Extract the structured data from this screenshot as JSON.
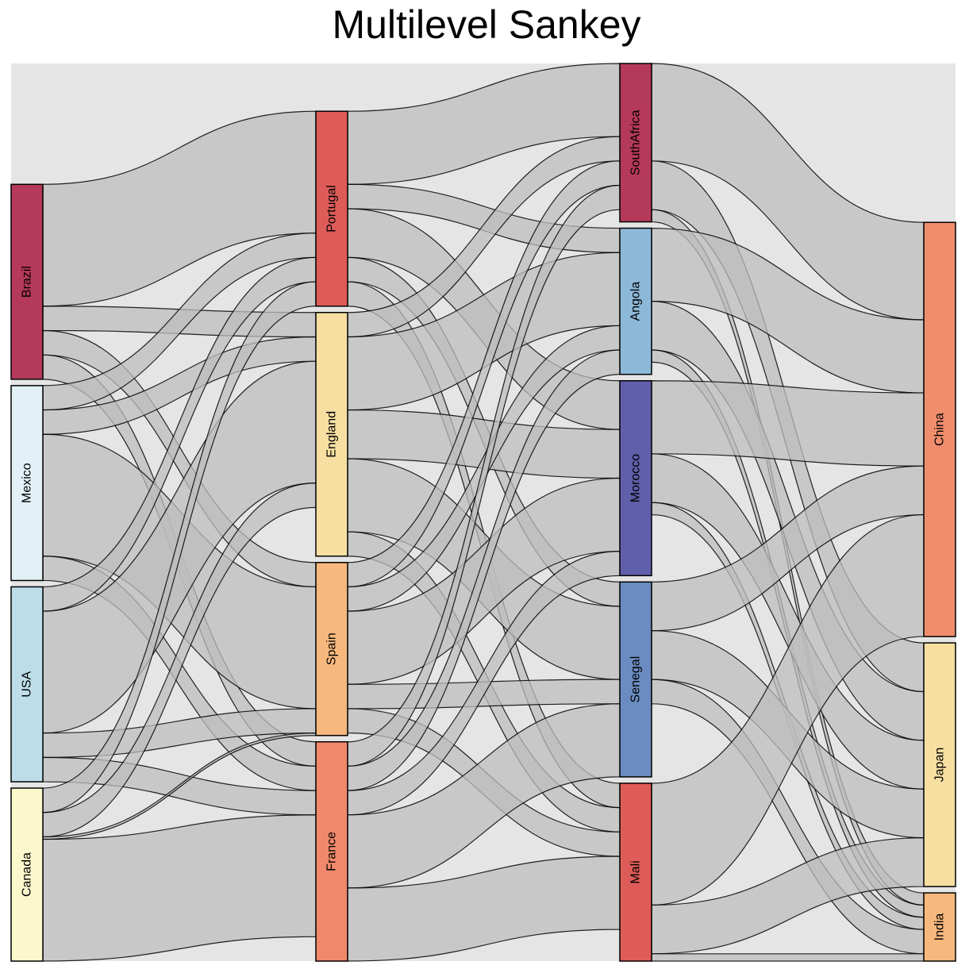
{
  "title": "Multilevel Sankey",
  "chart_data": {
    "type": "sankey",
    "title": "Multilevel Sankey",
    "levels": [
      [
        "Brazil",
        "Mexico",
        "USA",
        "Canada"
      ],
      [
        "Portugal",
        "England",
        "Spain",
        "France"
      ],
      [
        "SouthAfrica",
        "Angola",
        "Morocco",
        "Senegal",
        "Mali"
      ],
      [
        "China",
        "Japan",
        "India"
      ]
    ],
    "node_colors": {
      "Brazil": "#b5395a",
      "Mexico": "#e3f1f6",
      "USA": "#bddde9",
      "Canada": "#fbf8cc",
      "Portugal": "#de5c58",
      "England": "#f6dfa1",
      "Spain": "#f6b87d",
      "France": "#f0896b",
      "SouthAfrica": "#b5395a",
      "Angola": "#8db9d8",
      "Morocco": "#5f5fab",
      "Senegal": "#6a8cc0",
      "Mali": "#de5c58",
      "China": "#f08d6d",
      "Japan": "#f6dfa1",
      "India": "#f6b87d"
    },
    "link_color": "#bdbdbd",
    "background_color": "#e5e5e5",
    "links": [
      {
        "source": "Brazil",
        "target": "Portugal",
        "value": 5
      },
      {
        "source": "Brazil",
        "target": "England",
        "value": 1
      },
      {
        "source": "Brazil",
        "target": "Spain",
        "value": 1
      },
      {
        "source": "Brazil",
        "target": "France",
        "value": 1
      },
      {
        "source": "Mexico",
        "target": "Portugal",
        "value": 1
      },
      {
        "source": "Mexico",
        "target": "England",
        "value": 1
      },
      {
        "source": "Mexico",
        "target": "Spain",
        "value": 5
      },
      {
        "source": "Mexico",
        "target": "France",
        "value": 1
      },
      {
        "source": "USA",
        "target": "Portugal",
        "value": 1
      },
      {
        "source": "USA",
        "target": "England",
        "value": 5
      },
      {
        "source": "USA",
        "target": "Spain",
        "value": 1
      },
      {
        "source": "USA",
        "target": "France",
        "value": 1
      },
      {
        "source": "Canada",
        "target": "Portugal",
        "value": 1
      },
      {
        "source": "Canada",
        "target": "England",
        "value": 1
      },
      {
        "source": "Canada",
        "target": "Spain",
        "value": 0.1
      },
      {
        "source": "Canada",
        "target": "France",
        "value": 5
      },
      {
        "source": "Portugal",
        "target": "SouthAfrica",
        "value": 3
      },
      {
        "source": "Portugal",
        "target": "Angola",
        "value": 1
      },
      {
        "source": "Portugal",
        "target": "Morocco",
        "value": 2
      },
      {
        "source": "Portugal",
        "target": "Senegal",
        "value": 1
      },
      {
        "source": "Portugal",
        "target": "Mali",
        "value": 1
      },
      {
        "source": "England",
        "target": "SouthAfrica",
        "value": 1
      },
      {
        "source": "England",
        "target": "Angola",
        "value": 3
      },
      {
        "source": "England",
        "target": "Morocco",
        "value": 2
      },
      {
        "source": "England",
        "target": "Senegal",
        "value": 3
      },
      {
        "source": "England",
        "target": "Mali",
        "value": 1
      },
      {
        "source": "Spain",
        "target": "SouthAfrica",
        "value": 1
      },
      {
        "source": "Spain",
        "target": "Angola",
        "value": 1
      },
      {
        "source": "Spain",
        "target": "Morocco",
        "value": 3
      },
      {
        "source": "Spain",
        "target": "Senegal",
        "value": 1
      },
      {
        "source": "Spain",
        "target": "Mali",
        "value": 1
      },
      {
        "source": "France",
        "target": "SouthAfrica",
        "value": 1
      },
      {
        "source": "France",
        "target": "Angola",
        "value": 1
      },
      {
        "source": "France",
        "target": "Morocco",
        "value": 1
      },
      {
        "source": "France",
        "target": "Senegal",
        "value": 3
      },
      {
        "source": "France",
        "target": "Mali",
        "value": 3
      },
      {
        "source": "SouthAfrica",
        "target": "China",
        "value": 4
      },
      {
        "source": "SouthAfrica",
        "target": "Japan",
        "value": 2
      },
      {
        "source": "SouthAfrica",
        "target": "India",
        "value": 0.5
      },
      {
        "source": "Angola",
        "target": "China",
        "value": 3
      },
      {
        "source": "Angola",
        "target": "Japan",
        "value": 2
      },
      {
        "source": "Angola",
        "target": "India",
        "value": 0.5
      },
      {
        "source": "Morocco",
        "target": "China",
        "value": 3
      },
      {
        "source": "Morocco",
        "target": "Japan",
        "value": 2
      },
      {
        "source": "Morocco",
        "target": "India",
        "value": 0.5
      },
      {
        "source": "Senegal",
        "target": "China",
        "value": 2
      },
      {
        "source": "Senegal",
        "target": "Japan",
        "value": 2
      },
      {
        "source": "Senegal",
        "target": "India",
        "value": 1
      },
      {
        "source": "Mali",
        "target": "China",
        "value": 5
      },
      {
        "source": "Mali",
        "target": "Japan",
        "value": 2
      },
      {
        "source": "Mali",
        "target": "India",
        "value": 0.3
      }
    ]
  }
}
